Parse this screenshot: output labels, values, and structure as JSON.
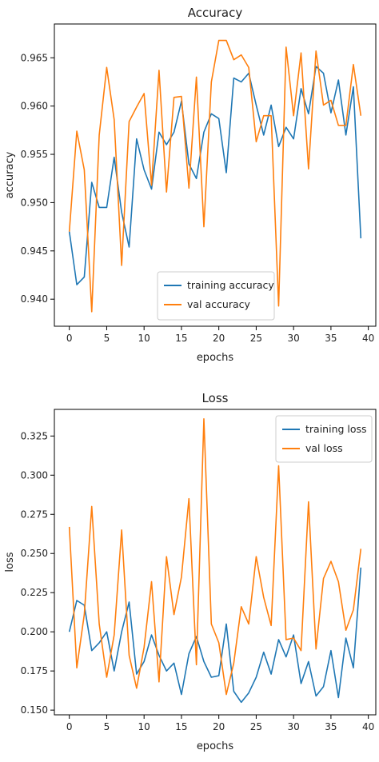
{
  "colors": {
    "training": "#1f77b4",
    "val": "#ff7f0e"
  },
  "chart_data": [
    {
      "type": "line",
      "title": "Accuracy",
      "xlabel": "epochs",
      "ylabel": "accuracy",
      "xlim": [
        -2,
        41
      ],
      "ylim": [
        0.9372,
        0.9685
      ],
      "xticks": [
        0,
        5,
        10,
        15,
        20,
        25,
        30,
        35,
        40
      ],
      "yticks": [
        0.94,
        0.945,
        0.95,
        0.955,
        0.96,
        0.965
      ],
      "ytick_labels": [
        "0.940",
        "0.945",
        "0.950",
        "0.955",
        "0.960",
        "0.965"
      ],
      "legend_position": "lower center",
      "x": [
        0,
        1,
        2,
        3,
        4,
        5,
        6,
        7,
        8,
        9,
        10,
        11,
        12,
        13,
        14,
        15,
        16,
        17,
        18,
        19,
        20,
        21,
        22,
        23,
        24,
        25,
        26,
        27,
        28,
        29,
        30,
        31,
        32,
        33,
        34,
        35,
        36,
        37,
        38,
        39
      ],
      "series": [
        {
          "name": "training accuracy",
          "color_key": "training",
          "values": [
            0.947,
            0.9415,
            0.9423,
            0.9521,
            0.9495,
            0.9495,
            0.9547,
            0.949,
            0.9454,
            0.9566,
            0.9534,
            0.9514,
            0.9573,
            0.956,
            0.9573,
            0.9605,
            0.954,
            0.9525,
            0.9573,
            0.9592,
            0.9587,
            0.9531,
            0.9629,
            0.9625,
            0.9634,
            0.9601,
            0.957,
            0.9601,
            0.9558,
            0.9578,
            0.9566,
            0.9618,
            0.9592,
            0.9641,
            0.9634,
            0.9593,
            0.9627,
            0.957,
            0.962,
            0.9463
          ]
        },
        {
          "name": "val accuracy",
          "color_key": "val",
          "values": [
            0.947,
            0.9574,
            0.9534,
            0.9387,
            0.957,
            0.964,
            0.9586,
            0.9435,
            0.9584,
            0.9599,
            0.9613,
            0.9518,
            0.9637,
            0.9511,
            0.9609,
            0.961,
            0.9515,
            0.963,
            0.9475,
            0.9625,
            0.9668,
            0.9668,
            0.9648,
            0.9653,
            0.964,
            0.9563,
            0.959,
            0.959,
            0.9393,
            0.9661,
            0.959,
            0.9655,
            0.9535,
            0.9657,
            0.9601,
            0.9606,
            0.958,
            0.958,
            0.9643,
            0.959
          ]
        }
      ]
    },
    {
      "type": "line",
      "title": "Loss",
      "xlabel": "epochs",
      "ylabel": "loss",
      "xlim": [
        -2,
        41
      ],
      "ylim": [
        0.147,
        0.342
      ],
      "xticks": [
        0,
        5,
        10,
        15,
        20,
        25,
        30,
        35,
        40
      ],
      "yticks": [
        0.15,
        0.175,
        0.2,
        0.225,
        0.25,
        0.275,
        0.3,
        0.325
      ],
      "ytick_labels": [
        "0.150",
        "0.175",
        "0.200",
        "0.225",
        "0.250",
        "0.275",
        "0.300",
        "0.325"
      ],
      "legend_position": "upper right",
      "x": [
        0,
        1,
        2,
        3,
        4,
        5,
        6,
        7,
        8,
        9,
        10,
        11,
        12,
        13,
        14,
        15,
        16,
        17,
        18,
        19,
        20,
        21,
        22,
        23,
        24,
        25,
        26,
        27,
        28,
        29,
        30,
        31,
        32,
        33,
        34,
        35,
        36,
        37,
        38,
        39
      ],
      "series": [
        {
          "name": "training loss",
          "color_key": "training",
          "values": [
            0.2,
            0.22,
            0.217,
            0.188,
            0.193,
            0.2,
            0.175,
            0.2,
            0.219,
            0.173,
            0.181,
            0.198,
            0.185,
            0.175,
            0.18,
            0.16,
            0.186,
            0.197,
            0.181,
            0.171,
            0.172,
            0.205,
            0.162,
            0.155,
            0.161,
            0.171,
            0.187,
            0.173,
            0.195,
            0.184,
            0.198,
            0.167,
            0.181,
            0.159,
            0.165,
            0.188,
            0.158,
            0.196,
            0.177,
            0.241
          ]
        },
        {
          "name": "val loss",
          "color_key": "val",
          "values": [
            0.267,
            0.177,
            0.211,
            0.28,
            0.205,
            0.171,
            0.198,
            0.265,
            0.185,
            0.164,
            0.19,
            0.232,
            0.168,
            0.248,
            0.211,
            0.235,
            0.285,
            0.179,
            0.336,
            0.205,
            0.193,
            0.16,
            0.18,
            0.216,
            0.205,
            0.248,
            0.222,
            0.204,
            0.306,
            0.195,
            0.196,
            0.188,
            0.283,
            0.189,
            0.234,
            0.245,
            0.232,
            0.201,
            0.214,
            0.253
          ]
        }
      ]
    }
  ]
}
